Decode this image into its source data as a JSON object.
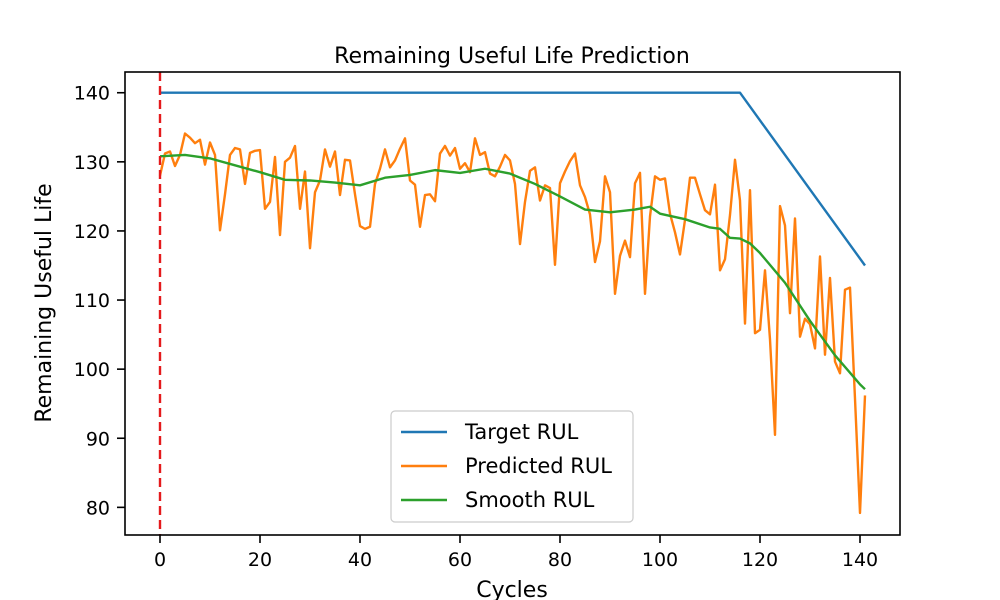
{
  "chart_data": {
    "type": "line",
    "title": "Remaining Useful Life Prediction",
    "xlabel": "Cycles",
    "ylabel": "Remaining Useful Life",
    "xlim": [
      -7,
      148
    ],
    "ylim": [
      76,
      143
    ],
    "xticks": [
      0,
      20,
      40,
      60,
      80,
      100,
      120,
      140
    ],
    "yticks": [
      80,
      90,
      100,
      110,
      120,
      130,
      140
    ],
    "grid": false,
    "legend_position": "lower center",
    "vertical_marker": {
      "x": 0,
      "color": "#e41a1c",
      "style": "dashed"
    },
    "series": [
      {
        "name": "Target RUL",
        "color": "#1f77b4",
        "x": [
          0,
          116,
          141
        ],
        "y": [
          140,
          140,
          115
        ]
      },
      {
        "name": "Predicted RUL",
        "color": "#ff7f0e",
        "x": [
          0,
          1,
          2,
          3,
          4,
          5,
          6,
          7,
          8,
          9,
          10,
          11,
          12,
          13,
          14,
          15,
          16,
          17,
          18,
          19,
          20,
          21,
          22,
          23,
          24,
          25,
          26,
          27,
          28,
          29,
          30,
          31,
          32,
          33,
          34,
          35,
          36,
          37,
          38,
          39,
          40,
          41,
          42,
          43,
          44,
          45,
          46,
          47,
          48,
          49,
          50,
          51,
          52,
          53,
          54,
          55,
          56,
          57,
          58,
          59,
          60,
          61,
          62,
          63,
          64,
          65,
          66,
          67,
          68,
          69,
          70,
          71,
          72,
          73,
          74,
          75,
          76,
          77,
          78,
          79,
          80,
          81,
          82,
          83,
          84,
          85,
          86,
          87,
          88,
          89,
          90,
          91,
          92,
          93,
          94,
          95,
          96,
          97,
          98,
          99,
          100,
          101,
          102,
          103,
          104,
          105,
          106,
          107,
          108,
          109,
          110,
          111,
          112,
          113,
          114,
          115,
          116,
          117,
          118,
          119,
          120,
          121,
          122,
          123,
          124,
          125,
          126,
          127,
          128,
          129,
          130,
          131,
          132,
          133,
          134,
          135,
          136,
          137,
          138,
          139,
          140,
          141
        ],
        "y": [
          128,
          131.2,
          131.5,
          129.4,
          131,
          134.1,
          133.5,
          132.7,
          133.2,
          129.6,
          132.8,
          131,
          120.1,
          125.3,
          131,
          132,
          131.8,
          126.8,
          131.3,
          131.6,
          131.7,
          123.2,
          124.2,
          130.7,
          119.4,
          130,
          130.6,
          132.3,
          123.2,
          128.6,
          117.5,
          125.6,
          127.3,
          131.8,
          129.3,
          131.5,
          125.2,
          130.3,
          130.2,
          125.3,
          120.7,
          120.3,
          120.6,
          126.8,
          129,
          131.8,
          129.2,
          130.2,
          131.9,
          133.4,
          127.3,
          126.7,
          120.6,
          125.2,
          125.3,
          124.3,
          131.2,
          132.3,
          130.9,
          132,
          129,
          129.8,
          128.5,
          133.4,
          131,
          131.4,
          128.3,
          127.9,
          129.3,
          131,
          130.2,
          126.8,
          118.1,
          124.2,
          128.7,
          129.2,
          124.4,
          126.6,
          126.2,
          115.1,
          126.9,
          128.6,
          130.1,
          131.2,
          126.6,
          124.9,
          122.4,
          115.5,
          118.5,
          127.9,
          125.6,
          110.9,
          116.4,
          118.6,
          116.2,
          126.9,
          128.4,
          110.9,
          122.1,
          127.9,
          127.4,
          127.6,
          122.5,
          119.8,
          116.6,
          121.6,
          127.7,
          127.7,
          125.3,
          123,
          122.4,
          126.7,
          114.3,
          115.9,
          122.3,
          130.3,
          124.4,
          106.6,
          125.9,
          105.2,
          105.7,
          114.3,
          104.3,
          90.5,
          123.6,
          120.8,
          108.1,
          121.8,
          104.7,
          107.3,
          106.5,
          103,
          116.3,
          102.1,
          113.2,
          101.1,
          99.4,
          111.5,
          111.8,
          95.7,
          79.2,
          96.2
        ]
      },
      {
        "name": "Smooth RUL",
        "color": "#2ca02c",
        "x": [
          0,
          5,
          10,
          15,
          20,
          25,
          30,
          35,
          40,
          45,
          50,
          55,
          60,
          65,
          70,
          75,
          80,
          85,
          90,
          95,
          98,
          100,
          105,
          110,
          112,
          114,
          116,
          118,
          120,
          125,
          130,
          135,
          140,
          141
        ],
        "y": [
          130.8,
          131,
          130.5,
          129.5,
          128.5,
          127.4,
          127.3,
          127,
          126.6,
          127.7,
          128.1,
          128.8,
          128.4,
          129,
          128.3,
          126.8,
          125,
          123.1,
          122.7,
          123.1,
          123.5,
          122.5,
          121.7,
          120.5,
          120.3,
          119,
          118.9,
          118.2,
          116.8,
          112.5,
          107,
          102,
          97.8,
          97.1
        ]
      }
    ]
  }
}
